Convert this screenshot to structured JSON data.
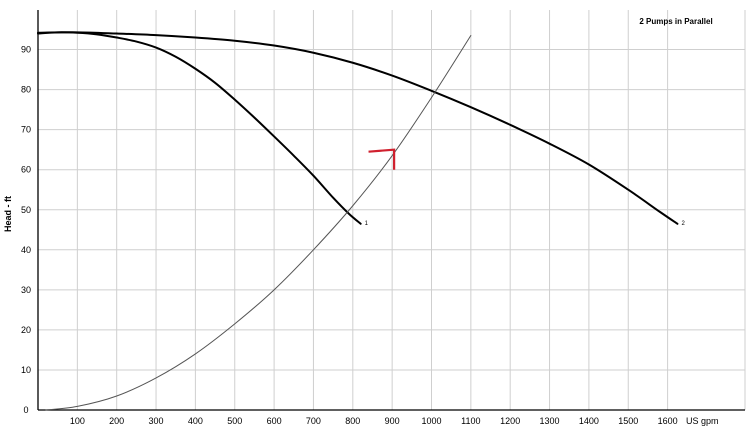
{
  "chart_data": {
    "type": "line",
    "title": "2 Pumps in Parallel",
    "xlabel": "US gpm",
    "ylabel": "Head - ft",
    "xlim": [
      0,
      1700
    ],
    "ylim": [
      0,
      100
    ],
    "grid": true,
    "x_ticks": [
      100,
      200,
      300,
      400,
      500,
      600,
      700,
      800,
      900,
      1000,
      1100,
      1200,
      1300,
      1400,
      1500,
      1600
    ],
    "y_ticks": [
      0,
      10,
      20,
      30,
      40,
      50,
      60,
      70,
      80,
      90
    ],
    "series": [
      {
        "name": "1",
        "color": "#000000",
        "x": [
          0,
          50,
          100,
          150,
          200,
          250,
          300,
          350,
          400,
          450,
          500,
          550,
          600,
          650,
          700,
          750,
          790,
          820
        ],
        "y": [
          94,
          94.3,
          94.2,
          93.8,
          93,
          92,
          90.5,
          88.2,
          85.2,
          81.7,
          77.5,
          73,
          68.3,
          63.5,
          58.5,
          53,
          49,
          46.5
        ]
      },
      {
        "name": "2",
        "color": "#000000",
        "x": [
          0,
          100,
          200,
          300,
          400,
          500,
          600,
          700,
          800,
          900,
          1000,
          1100,
          1200,
          1300,
          1400,
          1500,
          1580,
          1625
        ],
        "y": [
          94.2,
          94.3,
          94,
          93.6,
          93,
          92.2,
          91,
          89.2,
          86.7,
          83.5,
          79.7,
          75.6,
          71.2,
          66.5,
          61.3,
          55,
          49.5,
          46.5
        ]
      },
      {
        "color": "#555555",
        "x": [
          20,
          100,
          200,
          300,
          400,
          500,
          600,
          700,
          800,
          900,
          1000,
          1100
        ],
        "y": [
          0,
          0.9,
          3.5,
          8,
          14,
          21.5,
          30,
          40,
          51,
          63.5,
          78,
          93.5
        ]
      }
    ],
    "annotations": [
      {
        "type": "arrow",
        "color": "#d0202e",
        "x_from": 840,
        "y_from": 64.5,
        "x_to": 905,
        "y_to": 65,
        "x_end": 905,
        "y_end": 60
      }
    ]
  }
}
